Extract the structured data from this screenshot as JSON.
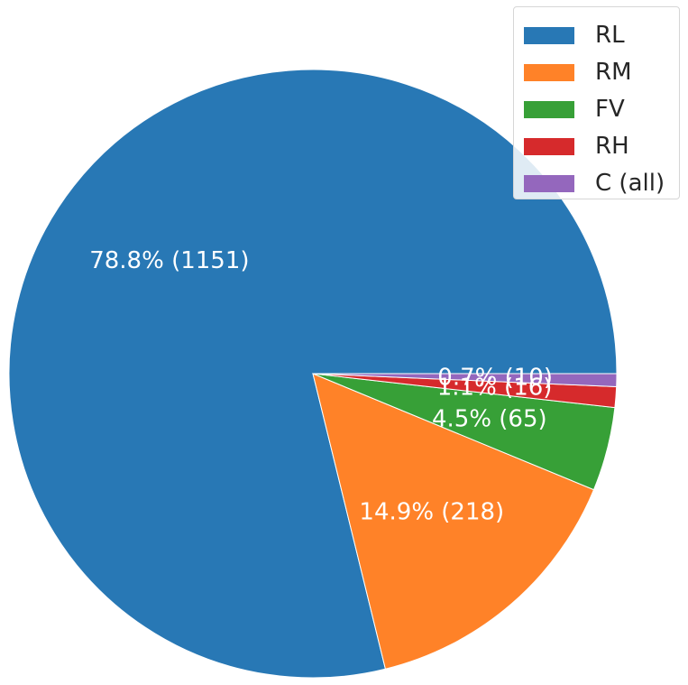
{
  "chart_data": {
    "type": "pie",
    "title": "",
    "categories": [
      "RL",
      "RM",
      "FV",
      "RH",
      "C (all)"
    ],
    "values": [
      1151,
      218,
      65,
      16,
      10
    ],
    "percent_labels": [
      "78.8%  (1151)",
      "14.9%  (218)",
      "4.5%  (65)",
      "1.1%  (16)",
      "0.7%  (10)"
    ],
    "colors": [
      "#2878b5",
      "#ff8228",
      "#37a037",
      "#d62a2c",
      "#9467bd"
    ],
    "start_angle_deg": 0,
    "direction": "counterclockwise",
    "legend_position": "top-right"
  }
}
